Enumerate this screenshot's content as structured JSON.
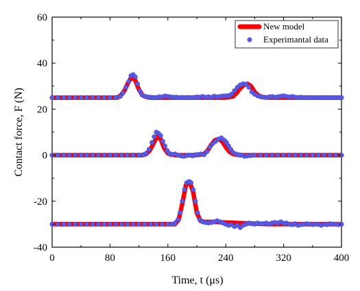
{
  "chart_data": {
    "type": "line",
    "xlabel": "Time, t (μs)",
    "ylabel": "Contact force, F (N)",
    "xlim": [
      0,
      400
    ],
    "ylim": [
      -40,
      60
    ],
    "xticks": [
      0,
      80,
      160,
      240,
      320,
      400
    ],
    "yticks": [
      -40,
      -20,
      0,
      20,
      40,
      60
    ],
    "grid": false,
    "legend_position": "top-right",
    "series": [
      {
        "name": "New model",
        "style": "line",
        "color": "#ff0000",
        "traces": [
          {
            "x": [
              0,
              90,
              95,
              100,
              105,
              110,
              115,
              120,
              125,
              130,
              135,
              140,
              160,
              200,
              240,
              250,
              255,
              260,
              265,
              270,
              275,
              280,
              285,
              290,
              300,
              400
            ],
            "y": [
              25,
              25,
              26,
              28,
              31.5,
              34,
              32.5,
              28.5,
              26,
              25.3,
              25,
              25,
              25,
              25,
              25,
              25.5,
              27,
              29,
              30.5,
              31,
              30,
              27.5,
              26,
              25.3,
              25,
              25
            ]
          },
          {
            "x": [
              0,
              125,
              130,
              135,
              140,
              145,
              150,
              155,
              160,
              165,
              170,
              200,
              210,
              215,
              220,
              225,
              230,
              235,
              240,
              245,
              250,
              255,
              260,
              400
            ],
            "y": [
              0,
              0,
              0.5,
              2,
              5,
              8,
              7,
              3,
              0.8,
              0.2,
              0,
              0,
              0.5,
              2,
              4.5,
              6.5,
              7,
              6,
              3.5,
              1.5,
              0.5,
              0.2,
              0,
              0
            ]
          },
          {
            "x": [
              0,
              170,
              175,
              180,
              185,
              190,
              195,
              200,
              205,
              210,
              220,
              260,
              300,
              400
            ],
            "y": [
              -30,
              -30,
              -28,
              -21,
              -13,
              -11.5,
              -16,
              -25,
              -28.5,
              -29,
              -29,
              -29.5,
              -30,
              -30
            ]
          }
        ]
      },
      {
        "name": "Experimantal data",
        "style": "scatter",
        "color": "#5a5ae6",
        "traces": [
          {
            "x": [
              0,
              8,
              16,
              24,
              32,
              40,
              48,
              56,
              64,
              72,
              80,
              88,
              94,
              98,
              102,
              106,
              109,
              112,
              115,
              118,
              121,
              124,
              128,
              132,
              136,
              140,
              144,
              148,
              152,
              156,
              160,
              164,
              168,
              172,
              176,
              180,
              184,
              188,
              192,
              196,
              200,
              204,
              208,
              212,
              216,
              220,
              224,
              228,
              232,
              236,
              240,
              244,
              248,
              252,
              256,
              260,
              264,
              268,
              272,
              276,
              280,
              284,
              288,
              292,
              296,
              300,
              304,
              308,
              312,
              316,
              320,
              324,
              328,
              332,
              336,
              340,
              344,
              348,
              352,
              356,
              360,
              364,
              368,
              372,
              376,
              380,
              384,
              388,
              392,
              396,
              400
            ],
            "y": [
              25,
              25,
              25,
              25,
              25,
              25,
              25,
              25,
              25,
              25,
              25,
              25,
              25.5,
              27,
              29.5,
              32,
              34.5,
              35,
              34,
              31,
              28,
              26.3,
              25.6,
              25.3,
              25.2,
              25.1,
              25,
              25.4,
              25.3,
              25.7,
              25.5,
              25.3,
              25.2,
              25.2,
              25,
              25.1,
              25,
              25.1,
              25,
              25.1,
              25.3,
              25.2,
              25.5,
              25.2,
              25.4,
              25.1,
              25.6,
              25.3,
              25.5,
              25.7,
              25.8,
              25.9,
              26.5,
              28,
              29.5,
              30.5,
              31,
              30.8,
              29.5,
              27.5,
              26.5,
              25.8,
              25.4,
              25.2,
              25,
              25.3,
              25.5,
              25.2,
              25.4,
              25.6,
              25.8,
              25.5,
              25.3,
              25.5,
              25.2,
              25.1,
              25.2,
              25,
              25.1,
              25,
              25,
              25,
              25,
              25,
              25,
              25,
              25,
              25,
              25,
              25,
              25
            ]
          },
          {
            "x": [
              0,
              8,
              16,
              24,
              32,
              40,
              48,
              56,
              64,
              72,
              80,
              88,
              96,
              104,
              112,
              120,
              126,
              130,
              134,
              138,
              141,
              144,
              147,
              150,
              153,
              156,
              159,
              162,
              166,
              170,
              174,
              178,
              182,
              186,
              190,
              194,
              198,
              202,
              206,
              210,
              214,
              218,
              222,
              226,
              230,
              234,
              238,
              241,
              244,
              247,
              250,
              254,
              258,
              262,
              266,
              270,
              274,
              280,
              288,
              296,
              304,
              312,
              320,
              328,
              336,
              344,
              352,
              360,
              368,
              376,
              384,
              392,
              400
            ],
            "y": [
              0,
              0,
              0,
              0,
              0,
              0,
              0,
              0,
              0,
              0,
              0,
              0,
              0,
              0,
              0,
              0,
              0.2,
              0.8,
              2.5,
              5.5,
              8,
              10,
              9.5,
              8.5,
              6,
              4,
              2,
              0.8,
              0.3,
              0.5,
              0,
              -0.3,
              -0.5,
              -0.2,
              0,
              -0.3,
              0.2,
              0.3,
              0.5,
              0.2,
              1.5,
              3.5,
              5,
              6,
              7,
              7.5,
              6.5,
              5.5,
              4,
              2.5,
              1.2,
              0.5,
              0.2,
              0,
              -0.5,
              -0.3,
              -0.2,
              0,
              0,
              0,
              0,
              0,
              0,
              0,
              0,
              0,
              0,
              0,
              0,
              0,
              0,
              0,
              0
            ]
          },
          {
            "x": [
              0,
              8,
              16,
              24,
              32,
              40,
              48,
              56,
              64,
              72,
              80,
              88,
              96,
              104,
              112,
              120,
              128,
              136,
              144,
              152,
              160,
              166,
              170,
              174,
              177,
              180,
              183,
              186,
              189,
              192,
              195,
              198,
              201,
              204,
              208,
              212,
              216,
              220,
              224,
              228,
              232,
              236,
              240,
              244,
              248,
              252,
              256,
              260,
              264,
              268,
              272,
              276,
              280,
              284,
              288,
              292,
              296,
              300,
              304,
              308,
              312,
              316,
              320,
              324,
              328,
              332,
              336,
              340,
              344,
              348,
              352,
              356,
              360,
              364,
              368,
              372,
              376,
              380,
              384,
              388,
              392,
              396,
              400
            ],
            "y": [
              -30,
              -30,
              -30,
              -30,
              -30,
              -30,
              -30,
              -30,
              -30,
              -30,
              -30,
              -30,
              -30,
              -30,
              -30,
              -30,
              -30,
              -30,
              -30,
              -30,
              -30,
              -30,
              -29.5,
              -28,
              -25,
              -20,
              -15,
              -12,
              -11.5,
              -12,
              -15,
              -20,
              -25,
              -28,
              -29,
              -29.3,
              -29.5,
              -29.3,
              -29,
              -28.5,
              -29,
              -29.5,
              -30,
              -30.5,
              -30.2,
              -31,
              -30.5,
              -31.5,
              -30.5,
              -30,
              -29.5,
              -29.8,
              -30,
              -29.5,
              -29.8,
              -29.8,
              -29.5,
              -30,
              -29.5,
              -29.3,
              -29.5,
              -29,
              -29.6,
              -29.5,
              -30,
              -30.2,
              -29.8,
              -30.5,
              -30.2,
              -30,
              -29.8,
              -30,
              -30.2,
              -30,
              -30,
              -30.5,
              -30,
              -30.2,
              -29.8,
              -30,
              -30,
              -30.2,
              -30
            ]
          }
        ]
      }
    ]
  }
}
